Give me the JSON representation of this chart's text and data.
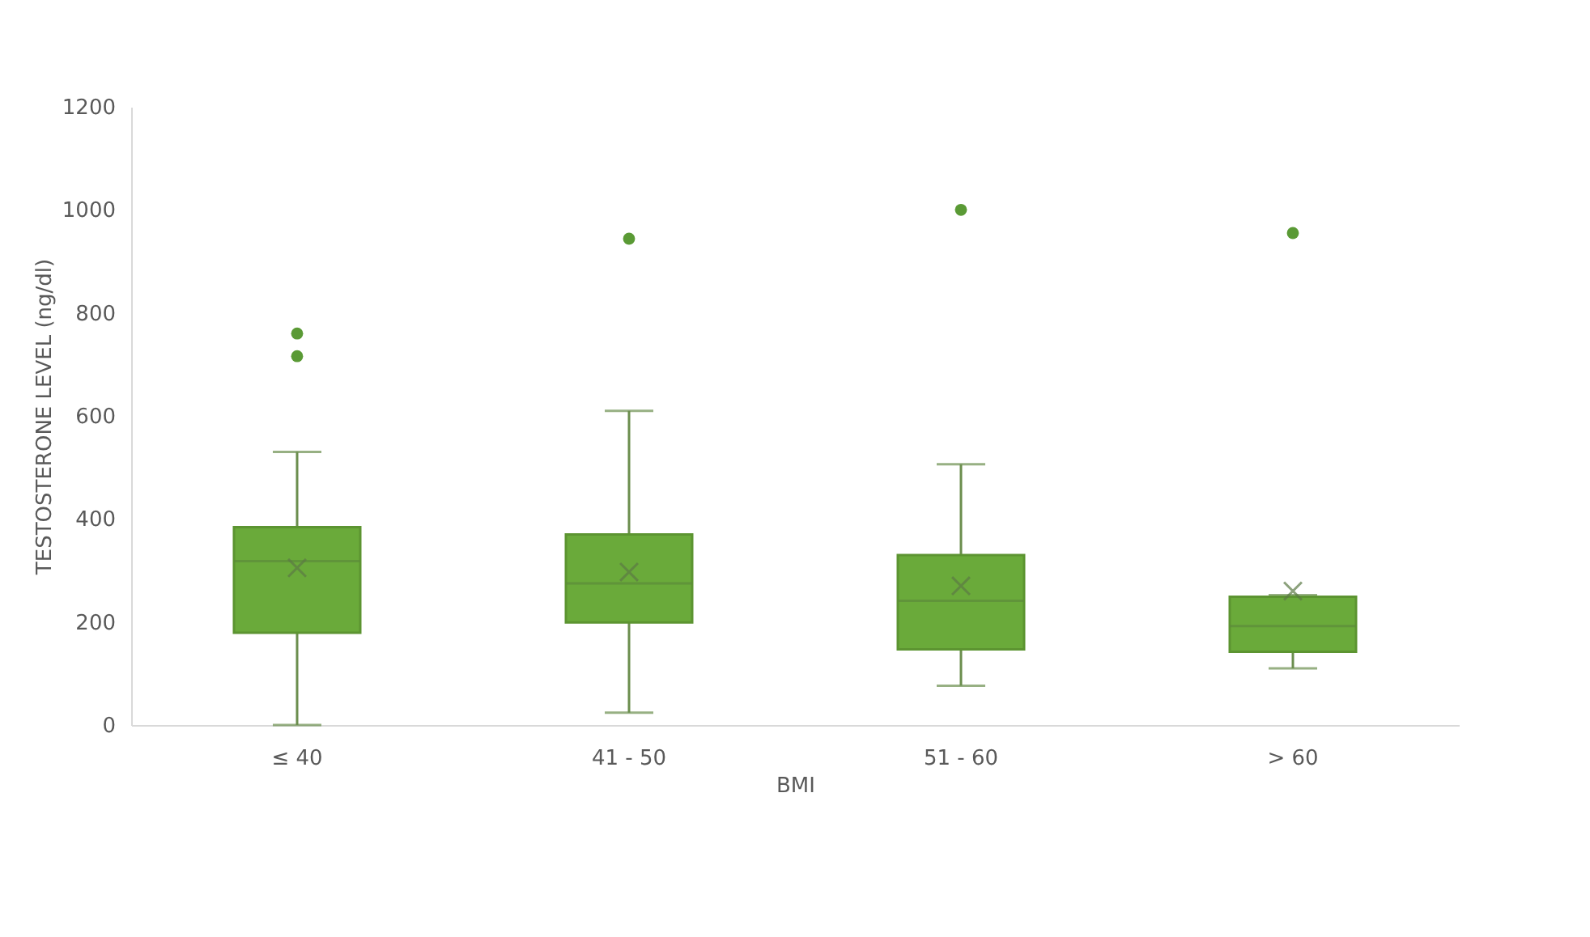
{
  "chart_data": {
    "type": "box",
    "xlabel": "BMI",
    "ylabel": "TESTOSTERONE LEVEL (ng/dl)",
    "categories": [
      "≤ 40",
      "41 - 50",
      "51 - 60",
      "> 60"
    ],
    "color": "#6aaa3a",
    "ylim": [
      0,
      1200
    ],
    "yticks": [
      0,
      200,
      400,
      600,
      800,
      1000,
      1200
    ],
    "grid": false,
    "boxes": [
      {
        "low": 0,
        "q1": 179,
        "median": 318,
        "q3": 384,
        "high": 530,
        "mean": 305,
        "outliers": [
          760,
          716
        ]
      },
      {
        "low": 24,
        "q1": 199,
        "median": 275,
        "q3": 370,
        "high": 610,
        "mean": 297,
        "outliers": [
          944
        ]
      },
      {
        "low": 76,
        "q1": 147,
        "median": 241,
        "q3": 330,
        "high": 506,
        "mean": 270,
        "outliers": [
          1000
        ]
      },
      {
        "low": 110,
        "q1": 142,
        "median": 192,
        "q3": 249,
        "high": 252,
        "mean": 260,
        "outliers": [
          955
        ]
      }
    ]
  }
}
